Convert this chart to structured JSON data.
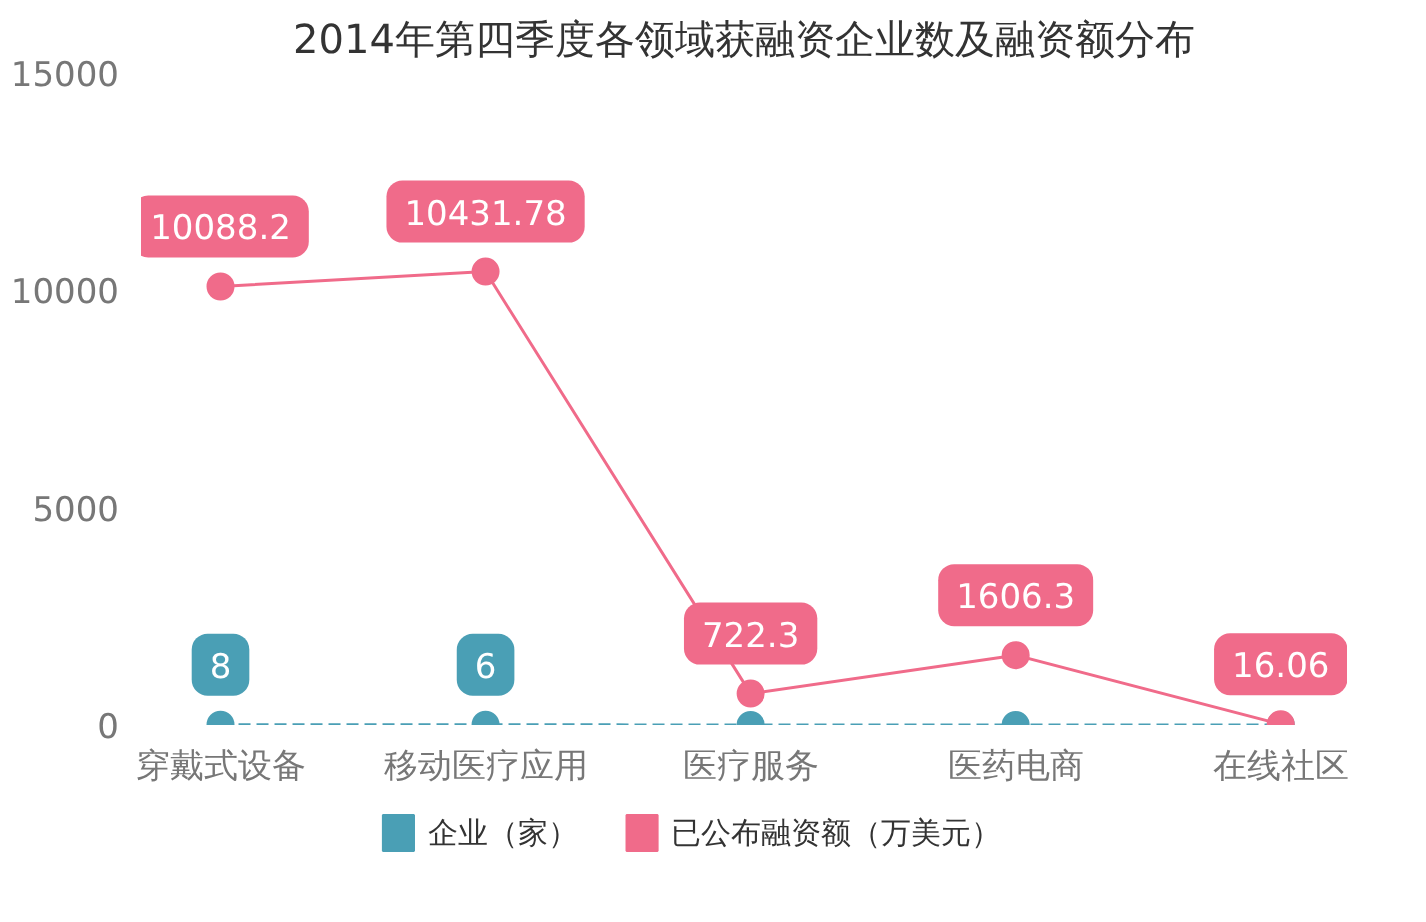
{
  "chart_data": {
    "type": "line",
    "title": "2014年第四季度各领域获融资企业数及融资额分布",
    "categories": [
      "穿戴式设备",
      "移动医疗应用",
      "医疗服务",
      "医药电商",
      "在线社区"
    ],
    "series": [
      {
        "name": "企业（家）",
        "color": "#4a9fb5",
        "values": [
          8,
          6,
          0,
          0,
          0
        ],
        "value_labels": [
          "8",
          "6",
          null,
          null,
          null
        ],
        "line_style": "dashed"
      },
      {
        "name": "已公布融资额（万美元）",
        "color": "#f06b8a",
        "values": [
          10088.2,
          10431.78,
          722.3,
          1606.3,
          16.06
        ],
        "value_labels": [
          "10088.2",
          "10431.78",
          "722.3",
          "1606.3",
          "16.06"
        ],
        "line_style": "solid"
      }
    ],
    "ylim": [
      0,
      15000
    ],
    "yticks": [
      0,
      5000,
      10000,
      15000
    ],
    "grid": false,
    "legend": "bottom",
    "marker": "circle"
  }
}
